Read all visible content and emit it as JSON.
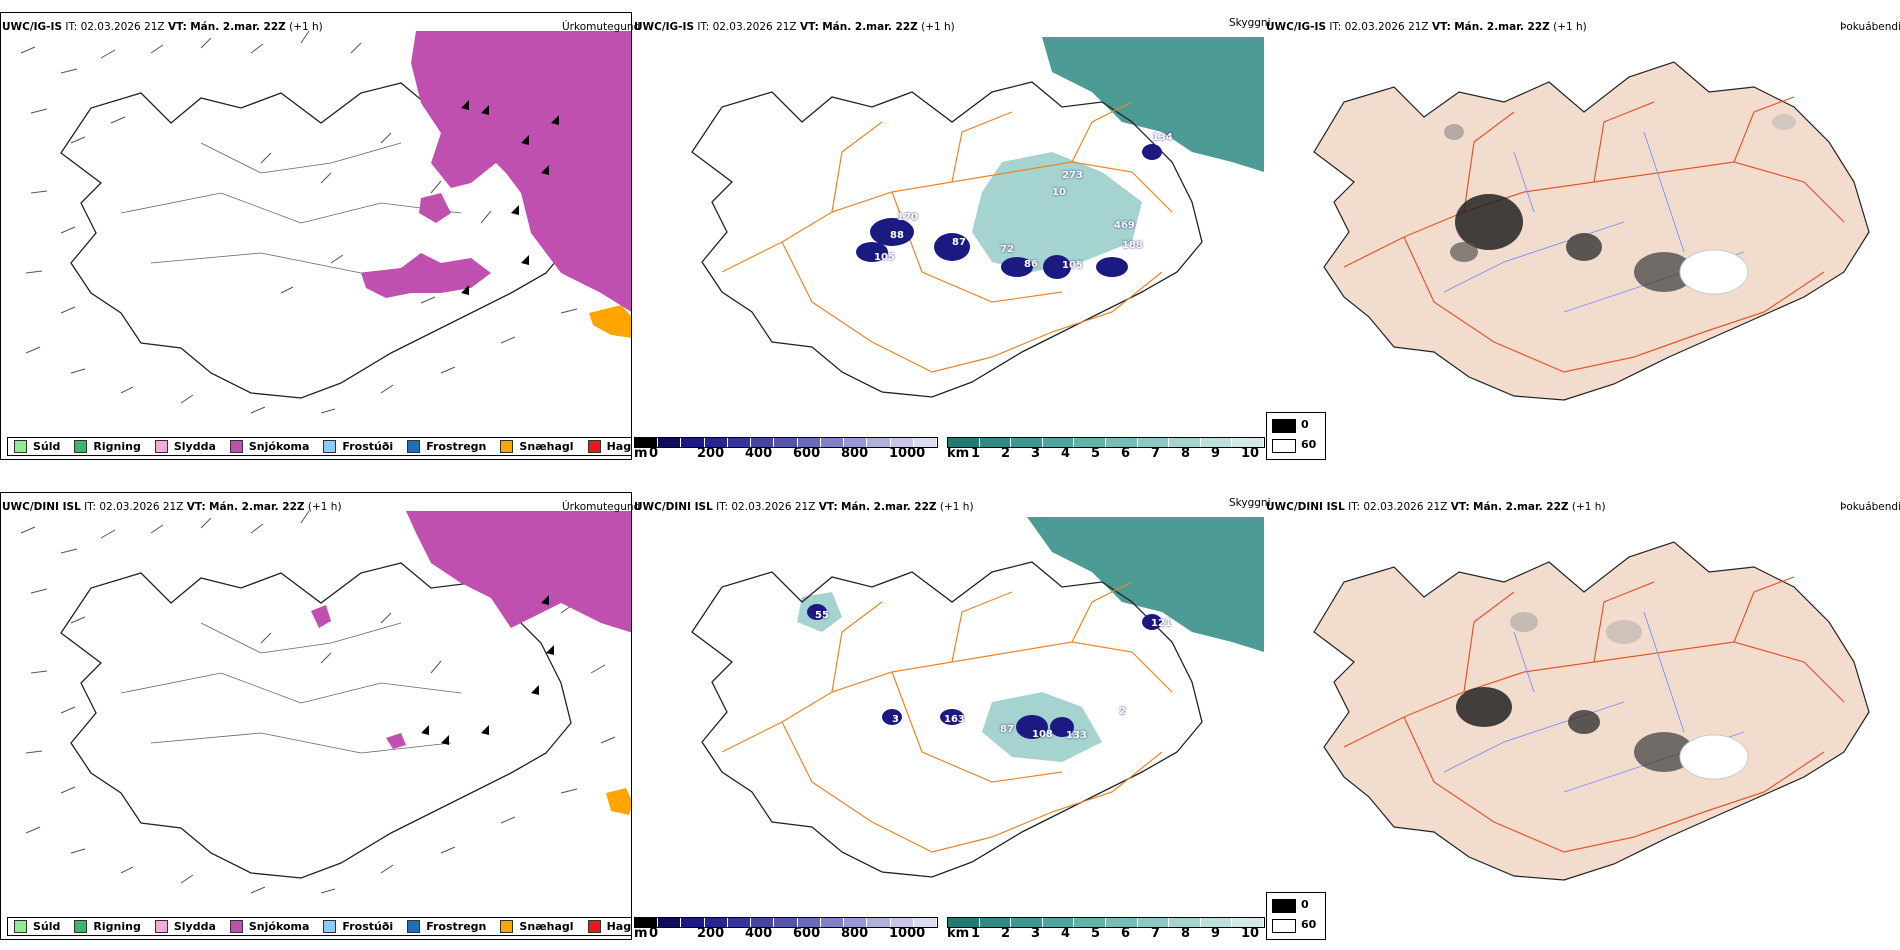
{
  "rows": [
    {
      "model": "UWC/IG-IS",
      "it_label": "IT:",
      "it_value": "02.03.2026 21Z",
      "vt_label": "VT:",
      "vt_value": "Mán. 2.mar. 22Z",
      "offset": "(+1 h)",
      "panel_titles": [
        "Úrkomutegund",
        "Skyggni",
        "Þokuábendi"
      ],
      "cloud_labels": [
        "170",
        "88",
        "105",
        "87",
        "72",
        "86",
        "105",
        "273",
        "10",
        "469",
        "188",
        "134"
      ]
    },
    {
      "model": "UWC/DINI ISL",
      "it_label": "IT:",
      "it_value": "02.03.2026 21Z",
      "vt_label": "VT:",
      "vt_value": "Mán. 2.mar. 22Z",
      "offset": "(+1 h)",
      "panel_titles": [
        "Úrkomutegund",
        "Skyggni",
        "Þokuábendi"
      ],
      "cloud_labels": [
        "55",
        "3",
        "163",
        "87",
        "108",
        "133",
        "2",
        "121"
      ]
    }
  ],
  "precip_legend": [
    {
      "label": "Súld",
      "color": "#90ee90"
    },
    {
      "label": "Rigning",
      "color": "#3cb371"
    },
    {
      "label": "Slydda",
      "color": "#f5a9d8"
    },
    {
      "label": "Snjókoma",
      "color": "#c050b0"
    },
    {
      "label": "Frostúði",
      "color": "#87cefa"
    },
    {
      "label": "Frostregn",
      "color": "#1e6fb8"
    },
    {
      "label": "Snæhagl",
      "color": "#ffa500"
    },
    {
      "label": "Haglél",
      "color": "#e41a1c"
    }
  ],
  "ceiling_bar": {
    "unit": "m",
    "ticks": [
      "0",
      "200",
      "400",
      "600",
      "800",
      "1000"
    ],
    "colors": [
      "#000000",
      "#0d0d5a",
      "#1a1a80",
      "#262690",
      "#33339a",
      "#4545a5",
      "#5555b0",
      "#6a6abb",
      "#8080c5",
      "#9898d0",
      "#b0b0dc",
      "#c8c8e6",
      "#dcdcf0"
    ]
  },
  "visibility_bar": {
    "unit": "km",
    "ticks": [
      "1",
      "2",
      "3",
      "4",
      "5",
      "6",
      "7",
      "8",
      "9",
      "10"
    ],
    "colors": [
      "#1f7a73",
      "#2e8a82",
      "#3d9891",
      "#4fa59f",
      "#63b1ab",
      "#78bcb7",
      "#8ec8c3",
      "#a5d3cf",
      "#bcdfdb",
      "#d3eae8"
    ]
  },
  "fog_legend": [
    {
      "label": "0",
      "color": "#000000"
    },
    {
      "label": "60",
      "color": "#ffffff"
    }
  ],
  "colors": {
    "snow": "#c050b0",
    "snow_pellets": "#ffa500",
    "visibility": "#2e8a82",
    "roads": "#e8862a",
    "land_fog": "#f2dccd",
    "fog_roads": "#e4572e",
    "fog_rivers": "#7a8cff"
  }
}
